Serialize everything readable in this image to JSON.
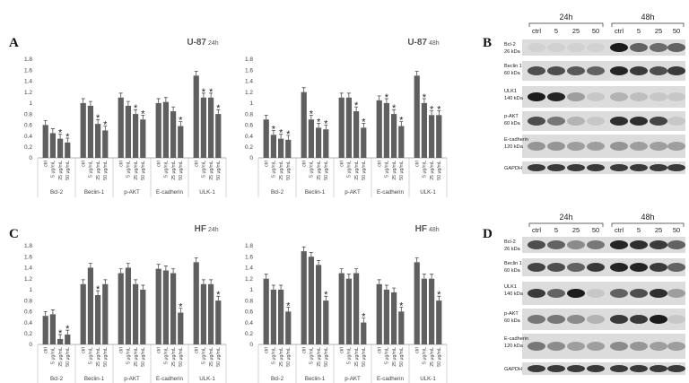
{
  "panel_labels": [
    "A",
    "B",
    "C",
    "D"
  ],
  "chart_data": [
    {
      "type": "bar",
      "title": "U-87",
      "subtitle": "24h",
      "categories": [
        "Bcl-2",
        "Beclin-1",
        "p-AKT",
        "E-cadherin",
        "ULK-1"
      ],
      "series": [
        {
          "name": "ctrl",
          "color": "#5f5f5f",
          "values": [
            0.6,
            1.0,
            1.1,
            1.0,
            1.5
          ],
          "errors": [
            0.08,
            0.08,
            0.08,
            0.08,
            0.08
          ],
          "significant": [
            false,
            false,
            false,
            false,
            false
          ]
        },
        {
          "name": "5 μg/mL",
          "color": "#5f5f5f",
          "values": [
            0.45,
            0.95,
            0.95,
            1.02,
            1.1
          ],
          "errors": [
            0.08,
            0.08,
            0.08,
            0.08,
            0.08
          ],
          "significant": [
            false,
            false,
            false,
            false,
            true
          ]
        },
        {
          "name": "25 μg/mL",
          "color": "#5f5f5f",
          "values": [
            0.35,
            0.62,
            0.8,
            0.85,
            1.1
          ],
          "errors": [
            0.08,
            0.08,
            0.08,
            0.08,
            0.08
          ],
          "significant": [
            true,
            true,
            true,
            false,
            true
          ]
        },
        {
          "name": "50 μg/mL",
          "color": "#5f5f5f",
          "values": [
            0.28,
            0.5,
            0.7,
            0.58,
            0.8
          ],
          "errors": [
            0.08,
            0.08,
            0.08,
            0.08,
            0.08
          ],
          "significant": [
            true,
            true,
            true,
            true,
            true
          ]
        }
      ],
      "significance_mark": "*",
      "ylim": [
        0,
        1.8
      ],
      "yticks": [
        0,
        0.2,
        0.4,
        0.6,
        0.8,
        1,
        1.2,
        1.4,
        1.6,
        1.8
      ]
    },
    {
      "type": "bar",
      "title": "U-87",
      "subtitle": "48h",
      "categories": [
        "Bcl-2",
        "Beclin-1",
        "p-AKT",
        "E-cadherin",
        "ULK-1"
      ],
      "series": [
        {
          "name": "ctrl",
          "color": "#5f5f5f",
          "values": [
            0.7,
            1.2,
            1.1,
            1.05,
            1.5
          ],
          "errors": [
            0.08,
            0.08,
            0.08,
            0.08,
            0.08
          ],
          "significant": [
            false,
            false,
            false,
            false,
            false
          ]
        },
        {
          "name": "5 μg/mL",
          "color": "#5f5f5f",
          "values": [
            0.42,
            0.7,
            1.1,
            1.0,
            1.0
          ],
          "errors": [
            0.08,
            0.08,
            0.08,
            0.08,
            0.08
          ],
          "significant": [
            true,
            true,
            false,
            true,
            true
          ]
        },
        {
          "name": "25 μg/mL",
          "color": "#5f5f5f",
          "values": [
            0.35,
            0.55,
            0.85,
            0.8,
            0.78
          ],
          "errors": [
            0.08,
            0.08,
            0.08,
            0.08,
            0.08
          ],
          "significant": [
            true,
            true,
            true,
            true,
            true
          ]
        },
        {
          "name": "50 μg/mL",
          "color": "#5f5f5f",
          "values": [
            0.33,
            0.52,
            0.55,
            0.58,
            0.78
          ],
          "errors": [
            0.08,
            0.08,
            0.08,
            0.08,
            0.08
          ],
          "significant": [
            true,
            true,
            true,
            true,
            true
          ]
        }
      ],
      "significance_mark": "*",
      "ylim": [
        0,
        1.8
      ],
      "yticks": [
        0,
        0.2,
        0.4,
        0.6,
        0.8,
        1,
        1.2,
        1.4,
        1.6,
        1.8
      ]
    },
    {
      "type": "bar",
      "title": "HF",
      "subtitle": "24h",
      "categories": [
        "Bcl-2",
        "Beclin-1",
        "p-AKT",
        "E-cadherin",
        "ULK-1"
      ],
      "series": [
        {
          "name": "ctrl",
          "color": "#5f5f5f",
          "values": [
            0.52,
            1.1,
            1.3,
            1.38,
            1.5
          ],
          "errors": [
            0.08,
            0.08,
            0.08,
            0.08,
            0.08
          ],
          "significant": [
            false,
            false,
            false,
            false,
            false
          ]
        },
        {
          "name": "5 μg/mL",
          "color": "#5f5f5f",
          "values": [
            0.55,
            1.4,
            1.4,
            1.35,
            1.1
          ],
          "errors": [
            0.08,
            0.08,
            0.08,
            0.08,
            0.08
          ],
          "significant": [
            false,
            false,
            false,
            false,
            false
          ]
        },
        {
          "name": "25 μg/mL",
          "color": "#5f5f5f",
          "values": [
            0.1,
            0.9,
            1.1,
            1.3,
            1.1
          ],
          "errors": [
            0.08,
            0.08,
            0.08,
            0.08,
            0.08
          ],
          "significant": [
            true,
            true,
            false,
            false,
            false
          ]
        },
        {
          "name": "50 μg/mL",
          "color": "#5f5f5f",
          "values": [
            0.18,
            1.1,
            1.0,
            0.58,
            0.8
          ],
          "errors": [
            0.08,
            0.08,
            0.08,
            0.08,
            0.08
          ],
          "significant": [
            true,
            false,
            false,
            true,
            true
          ]
        }
      ],
      "significance_mark": "*",
      "ylim": [
        0,
        1.8
      ],
      "yticks": [
        0,
        0.2,
        0.4,
        0.6,
        0.8,
        1,
        1.2,
        1.4,
        1.6,
        1.8
      ]
    },
    {
      "type": "bar",
      "title": "HF",
      "subtitle": "48h",
      "categories": [
        "Bcl-2",
        "Beclin-1",
        "p-AKT",
        "E-cadherin",
        "ULK-1"
      ],
      "series": [
        {
          "name": "ctrl",
          "color": "#5f5f5f",
          "values": [
            1.2,
            1.7,
            1.3,
            1.1,
            1.5
          ],
          "errors": [
            0.08,
            0.08,
            0.08,
            0.08,
            0.08
          ],
          "significant": [
            false,
            false,
            false,
            false,
            false
          ]
        },
        {
          "name": "5 μg/mL",
          "color": "#5f5f5f",
          "values": [
            1.0,
            1.6,
            1.2,
            1.0,
            1.2
          ],
          "errors": [
            0.08,
            0.08,
            0.08,
            0.08,
            0.08
          ],
          "significant": [
            false,
            false,
            false,
            false,
            false
          ]
        },
        {
          "name": "25 μg/mL",
          "color": "#5f5f5f",
          "values": [
            1.0,
            1.45,
            1.3,
            0.95,
            1.2
          ],
          "errors": [
            0.08,
            0.08,
            0.08,
            0.08,
            0.08
          ],
          "significant": [
            false,
            false,
            false,
            false,
            false
          ]
        },
        {
          "name": "50 μg/mL",
          "color": "#5f5f5f",
          "values": [
            0.6,
            0.8,
            0.4,
            0.6,
            0.8
          ],
          "errors": [
            0.08,
            0.08,
            0.08,
            0.08,
            0.08
          ],
          "significant": [
            true,
            true,
            true,
            true,
            true
          ]
        }
      ],
      "significance_mark": "*",
      "ylim": [
        0,
        1.8
      ],
      "yticks": [
        0,
        0.2,
        0.4,
        0.6,
        0.8,
        1,
        1.2,
        1.4,
        1.6,
        1.8
      ]
    }
  ],
  "blots": [
    {
      "times": [
        "24h",
        "48h"
      ],
      "lanes": [
        "ctrl",
        "5",
        "25",
        "50",
        "ctrl",
        "5",
        "25",
        "50"
      ],
      "rows": [
        {
          "name": "Bcl-2",
          "size": "26 kDa"
        },
        {
          "name": "Beclin 1",
          "size": "60 kDa"
        },
        {
          "name": "ULK1",
          "size": "140 kDa"
        },
        {
          "name": "p-AKT",
          "size": "60 kDa"
        },
        {
          "name": "E-cadherin",
          "size": "120 kDa"
        },
        {
          "name": "GAPDH"
        }
      ]
    },
    {
      "times": [
        "24h",
        "48h"
      ],
      "lanes": [
        "ctrl",
        "5",
        "25",
        "50",
        "ctrl",
        "5",
        "25",
        "50"
      ],
      "rows": [
        {
          "name": "Bcl-2",
          "size": "26 kDa"
        },
        {
          "name": "Beclin 1",
          "size": "60 kDa"
        },
        {
          "name": "ULK1",
          "size": "140 kDa"
        },
        {
          "name": "p-AKT",
          "size": "60 kDa"
        },
        {
          "name": "E-cadherin",
          "size": "120 kDa"
        },
        {
          "name": "GAPDH"
        }
      ]
    }
  ]
}
